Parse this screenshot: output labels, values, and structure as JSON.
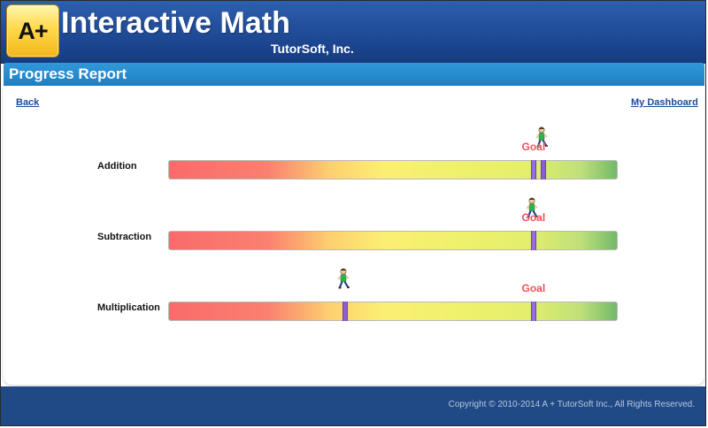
{
  "header": {
    "logo_text": "A+",
    "app_title": "Interactive Math",
    "company": "TutorSoft, Inc."
  },
  "titlebar": {
    "page_title": "Progress Report"
  },
  "nav": {
    "back_label": "Back",
    "dashboard_label": "My Dashboard"
  },
  "progress": {
    "goal_label": "Goal",
    "rows": [
      {
        "label": "Addition",
        "progress_fraction": 0.832,
        "goal_fraction": 0.812
      },
      {
        "label": "Subtraction",
        "progress_fraction": 0.812,
        "goal_fraction": 0.812
      },
      {
        "label": "Multiplication",
        "progress_fraction": 0.392,
        "goal_fraction": 0.812
      }
    ]
  },
  "footer": {
    "copyright": "Copyright © 2010-2014 A + TutorSoft Inc., All Rights Reserved."
  },
  "colors": {
    "header_blue": "#1f4a96",
    "titlebar_blue": "#2a8ccf",
    "footer_blue": "#1f4a86",
    "marker_purple": "#8a5fd6",
    "goal_red": "#f0505a"
  },
  "icons": [
    "walking-student-icon",
    "goal-marker-icon",
    "progress-marker-icon"
  ]
}
